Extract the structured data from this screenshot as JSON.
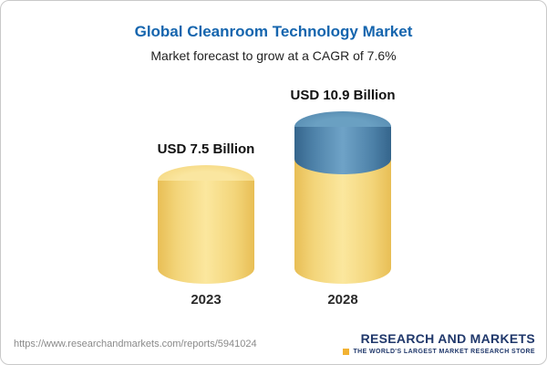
{
  "header": {
    "title": "Global Cleanroom Technology Market",
    "subtitle": "Market forecast to grow at a CAGR of 7.6%"
  },
  "chart_data": {
    "type": "bar",
    "title": "Global Cleanroom Technology Market",
    "subtitle": "Market forecast to grow at a CAGR of 7.6%",
    "categories": [
      "2023",
      "2028"
    ],
    "values": [
      7.5,
      10.9
    ],
    "unit": "USD Billion",
    "value_labels": [
      "USD 7.5 Billion",
      "USD 10.9 Billion"
    ],
    "cagr_percent": 7.6,
    "legend": "none",
    "grid": false,
    "bar_style": "3d-cylinder",
    "stacked_note": "2028 cylinder drawn as yellow base (7.5) plus blue growth segment (3.4) on top",
    "colors": {
      "base_segment": "#F2CF6B",
      "growth_segment": "#4E82A9",
      "title_blue": "#1565AE",
      "logo_navy": "#20386B",
      "logo_gold": "#F2B233"
    }
  },
  "footer": {
    "url": "https://www.researchandmarkets.com/reports/5941024",
    "logo": {
      "name": "RESEARCH AND MARKETS",
      "tagline": "THE WORLD'S LARGEST MARKET RESEARCH STORE"
    }
  }
}
